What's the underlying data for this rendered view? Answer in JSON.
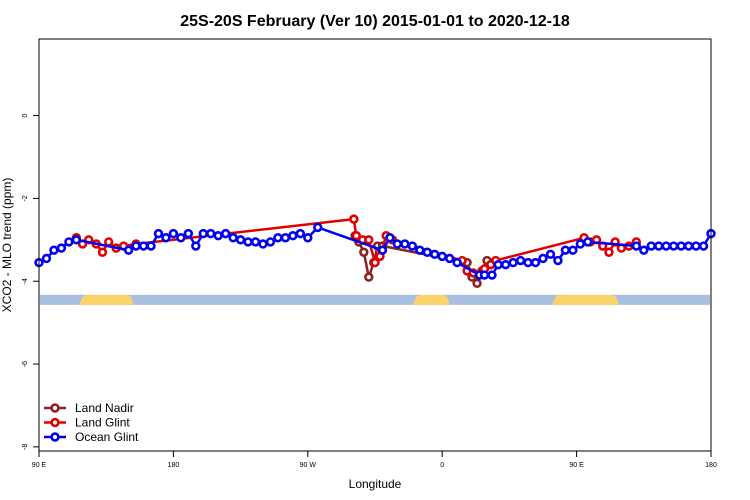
{
  "chart_data": {
    "type": "line",
    "title": "25S-20S February (Ver 10)   2015-01-01 to 2020-12-18",
    "xlabel": "Longitude",
    "ylabel": "XCO2 - MLO trend (ppm)",
    "xlim": [
      -90,
      180
    ],
    "ylim": [
      -8.1,
      1.85
    ],
    "x_ticks": [
      {
        "value": -90,
        "label": "90 E"
      },
      {
        "value": -36,
        "label": "180"
      },
      {
        "value": 18,
        "label": "90 W"
      },
      {
        "value": 72,
        "label": "0"
      },
      {
        "value": 126,
        "label": "90 E"
      },
      {
        "value": 180,
        "label": "180"
      }
    ],
    "y_ticks": [
      0,
      -2,
      -4,
      -6,
      -8
    ],
    "grid": false,
    "legend_position": "bottom-left",
    "land_mask": {
      "y": -4.45,
      "ocean_color": "#a9bfdf",
      "land_color": "#fad36a",
      "land_segments": [
        [
          -74,
          -52
        ],
        [
          60,
          75
        ],
        [
          116,
          143
        ]
      ]
    },
    "series": [
      {
        "name": "Land Nadir",
        "color": "#8b2323",
        "points": [
          [
            37,
            -2.9
          ],
          [
            38.5,
            -3.05
          ],
          [
            40.5,
            -3.3
          ],
          [
            42.5,
            -3.9
          ],
          [
            44.5,
            -3.55
          ],
          [
            46,
            -3.15
          ],
          [
            48,
            -3.15
          ],
          [
            82,
            -3.55
          ],
          [
            84,
            -3.9
          ],
          [
            86,
            -4.05
          ],
          [
            88,
            -3.75
          ],
          [
            90,
            -3.5
          ],
          [
            91.5,
            -3.6
          ]
        ]
      },
      {
        "name": "Land Glint",
        "color": "#e00000",
        "points": [
          [
            -75,
            -2.95
          ],
          [
            -72.5,
            -3.1
          ],
          [
            -70,
            -3.0
          ],
          [
            -67,
            -3.1
          ],
          [
            -64.5,
            -3.3
          ],
          [
            -62,
            -3.05
          ],
          [
            -59,
            -3.2
          ],
          [
            -56,
            -3.15
          ],
          [
            -51,
            -3.1
          ],
          [
            36.5,
            -2.5
          ],
          [
            37.5,
            -2.9
          ],
          [
            40,
            -3.0
          ],
          [
            42.5,
            -3.0
          ],
          [
            45,
            -3.55
          ],
          [
            47,
            -3.4
          ],
          [
            49.5,
            -2.9
          ],
          [
            52,
            -3.0
          ],
          [
            80,
            -3.5
          ],
          [
            82,
            -3.75
          ],
          [
            84.5,
            -3.8
          ],
          [
            87,
            -3.85
          ],
          [
            89,
            -3.7
          ],
          [
            91.5,
            -3.6
          ],
          [
            93.5,
            -3.5
          ],
          [
            129,
            -2.95
          ],
          [
            131.5,
            -3.05
          ],
          [
            134,
            -3.0
          ],
          [
            136.5,
            -3.15
          ],
          [
            139,
            -3.3
          ],
          [
            141.5,
            -3.05
          ],
          [
            144,
            -3.2
          ],
          [
            147,
            -3.15
          ],
          [
            150,
            -3.05
          ]
        ]
      },
      {
        "name": "Ocean Glint",
        "color": "#0000ee",
        "points": [
          [
            -90,
            -3.55
          ],
          [
            -87,
            -3.45
          ],
          [
            -84,
            -3.25
          ],
          [
            -81,
            -3.2
          ],
          [
            -78,
            -3.05
          ],
          [
            -75,
            -3.0
          ],
          [
            -54,
            -3.25
          ],
          [
            -51,
            -3.15
          ],
          [
            -48,
            -3.15
          ],
          [
            -45,
            -3.15
          ],
          [
            -42,
            -2.85
          ],
          [
            -39,
            -2.95
          ],
          [
            -36,
            -2.85
          ],
          [
            -33,
            -2.95
          ],
          [
            -30,
            -2.85
          ],
          [
            -27,
            -3.15
          ],
          [
            -24,
            -2.85
          ],
          [
            -21,
            -2.85
          ],
          [
            -18,
            -2.9
          ],
          [
            -15,
            -2.85
          ],
          [
            -12,
            -2.95
          ],
          [
            -9,
            -3.0
          ],
          [
            -6,
            -3.05
          ],
          [
            -3,
            -3.05
          ],
          [
            0,
            -3.1
          ],
          [
            3,
            -3.05
          ],
          [
            6,
            -2.95
          ],
          [
            9,
            -2.95
          ],
          [
            12,
            -2.9
          ],
          [
            15,
            -2.85
          ],
          [
            18,
            -2.95
          ],
          [
            22,
            -2.7
          ],
          [
            48,
            -3.25
          ],
          [
            51,
            -2.95
          ],
          [
            54,
            -3.1
          ],
          [
            57,
            -3.1
          ],
          [
            60,
            -3.15
          ],
          [
            63,
            -3.25
          ],
          [
            66,
            -3.3
          ],
          [
            69,
            -3.35
          ],
          [
            72,
            -3.4
          ],
          [
            75,
            -3.45
          ],
          [
            78,
            -3.55
          ],
          [
            87,
            -3.85
          ],
          [
            89,
            -3.85
          ],
          [
            92,
            -3.85
          ],
          [
            94.5,
            -3.6
          ],
          [
            97.5,
            -3.6
          ],
          [
            100.5,
            -3.55
          ],
          [
            103.5,
            -3.5
          ],
          [
            106.5,
            -3.55
          ],
          [
            109.5,
            -3.55
          ],
          [
            112.5,
            -3.45
          ],
          [
            115.5,
            -3.35
          ],
          [
            118.5,
            -3.5
          ],
          [
            121.5,
            -3.25
          ],
          [
            124.5,
            -3.25
          ],
          [
            127.5,
            -3.1
          ],
          [
            130.5,
            -3.05
          ],
          [
            150,
            -3.15
          ],
          [
            153,
            -3.25
          ],
          [
            156,
            -3.15
          ],
          [
            159,
            -3.15
          ],
          [
            162,
            -3.15
          ],
          [
            165,
            -3.15
          ],
          [
            168,
            -3.15
          ],
          [
            171,
            -3.15
          ],
          [
            174,
            -3.15
          ],
          [
            177,
            -3.15
          ],
          [
            180,
            -2.85
          ]
        ]
      }
    ]
  }
}
